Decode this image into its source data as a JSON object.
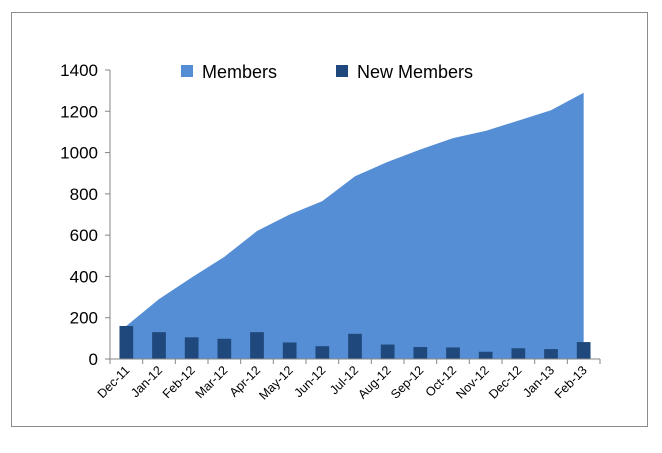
{
  "chart_data": {
    "type": "area",
    "title": "",
    "xlabel": "",
    "ylabel": "",
    "categories": [
      "Dec-11",
      "Jan-12",
      "Feb-12",
      "Mar-12",
      "Apr-12",
      "May-12",
      "Jun-12",
      "Jul-12",
      "Aug-12",
      "Sep-12",
      "Oct-12",
      "Nov-12",
      "Dec-12",
      "Jan-13",
      "Feb-13"
    ],
    "ylim": [
      0,
      1400
    ],
    "yticks": [
      0,
      200,
      400,
      600,
      800,
      1000,
      1200,
      1400
    ],
    "grid": false,
    "legend_placement": "top",
    "series": [
      {
        "name": "Members",
        "type": "area",
        "color": "#558ed5",
        "values": [
          160,
          290,
          395,
          495,
          620,
          700,
          765,
          885,
          955,
          1015,
          1070,
          1105,
          1155,
          1205,
          1290
        ]
      },
      {
        "name": "New Members",
        "type": "bar",
        "color": "#1f497d",
        "values": [
          160,
          130,
          105,
          98,
          130,
          80,
          62,
          122,
          70,
          58,
          56,
          35,
          52,
          48,
          82
        ]
      }
    ]
  }
}
